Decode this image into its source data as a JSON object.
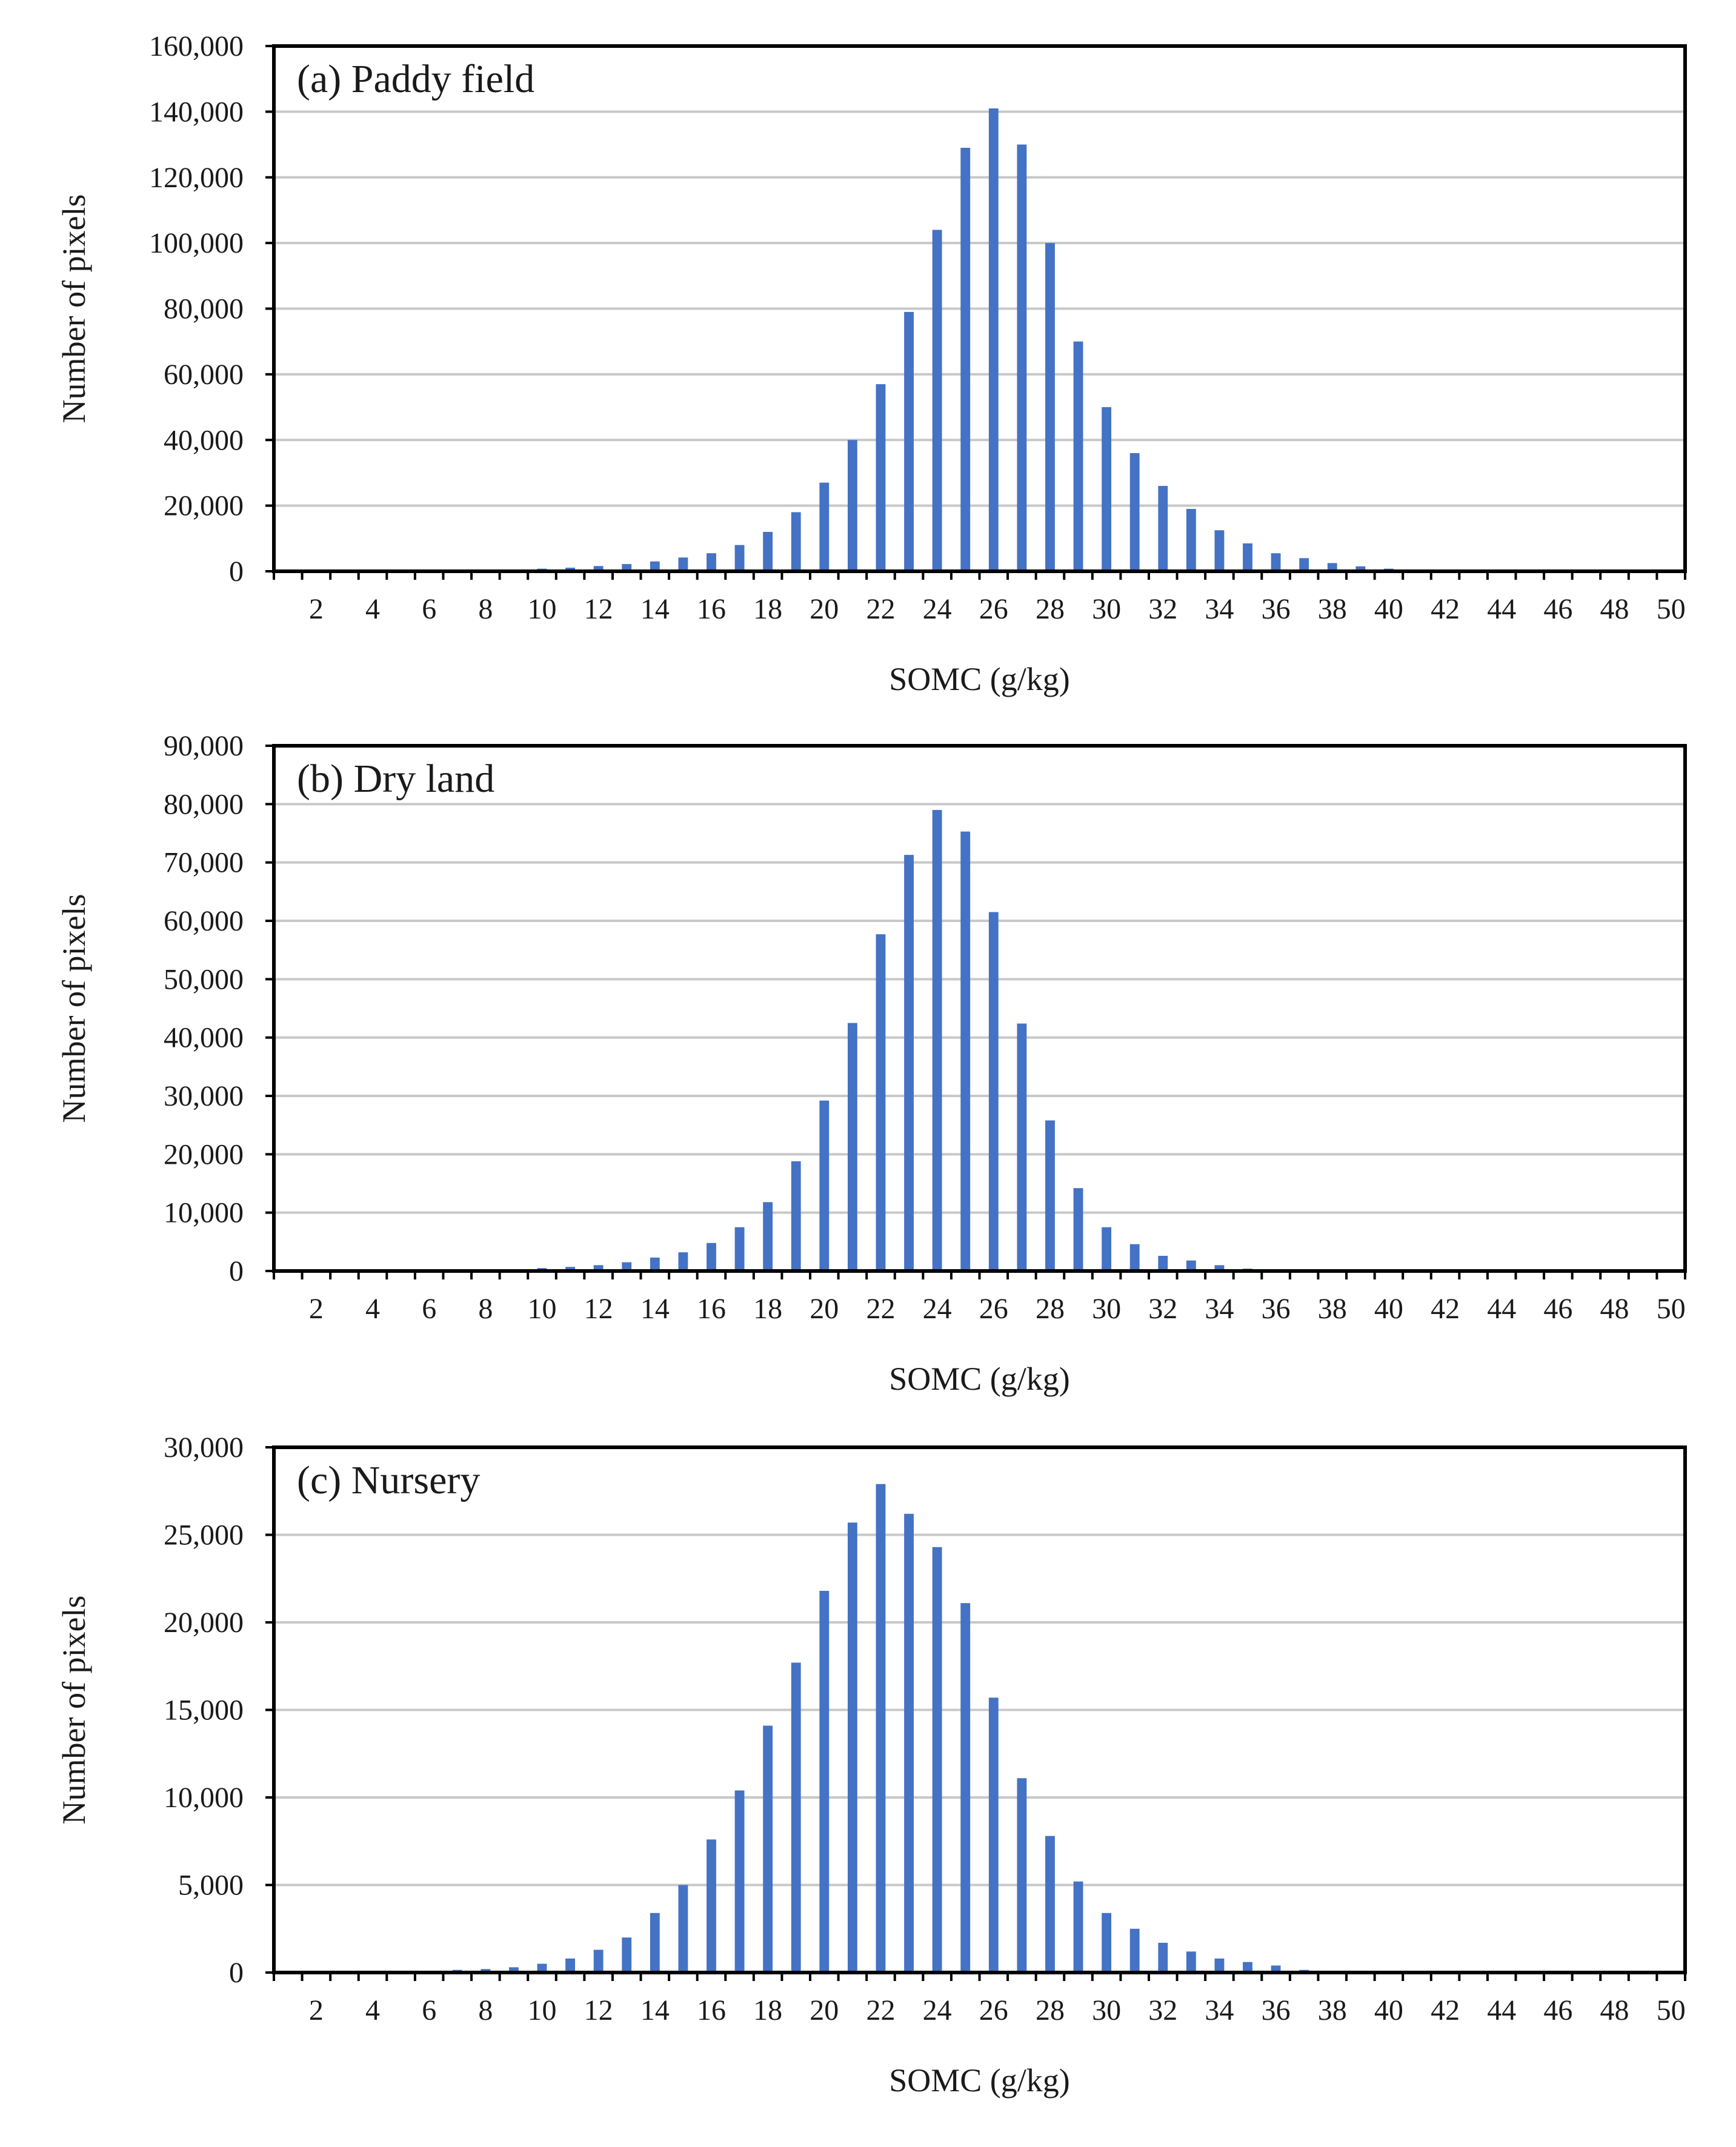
{
  "colors": {
    "bar": "#4472C4",
    "grid": "#C8C8C8",
    "frame": "#000000",
    "text": "#1a1a1a"
  },
  "chart_data": [
    {
      "type": "bar",
      "title": "(a) Paddy field",
      "xlabel": "SOMC (g/kg)",
      "ylabel": "Number of pixels",
      "xlim": [
        1,
        50
      ],
      "ylim": [
        0,
        160000
      ],
      "grid": true,
      "x_tick_labels": [
        "2",
        "4",
        "6",
        "8",
        "10",
        "12",
        "14",
        "16",
        "18",
        "20",
        "22",
        "24",
        "26",
        "28",
        "30",
        "32",
        "34",
        "36",
        "38",
        "40",
        "42",
        "44",
        "46",
        "48",
        "50"
      ],
      "y_tick_labels": [
        "0",
        "20,000",
        "40,000",
        "60,000",
        "80,000",
        "100,000",
        "120,000",
        "140,000",
        "160,000"
      ],
      "x": [
        1,
        2,
        3,
        4,
        5,
        6,
        7,
        8,
        9,
        10,
        11,
        12,
        13,
        14,
        15,
        16,
        17,
        18,
        19,
        20,
        21,
        22,
        23,
        24,
        25,
        26,
        27,
        28,
        29,
        30,
        31,
        32,
        33,
        34,
        35,
        36,
        37,
        38,
        39,
        40,
        41,
        42,
        43,
        44,
        45,
        46,
        47,
        48,
        49,
        50
      ],
      "values": [
        0,
        0,
        0,
        0,
        0,
        0,
        100,
        150,
        250,
        800,
        1100,
        1600,
        2200,
        3000,
        4200,
        5500,
        8000,
        12000,
        18000,
        27000,
        40000,
        57000,
        79000,
        104000,
        129000,
        141000,
        130000,
        100000,
        70000,
        50000,
        36000,
        26000,
        19000,
        12500,
        8500,
        5500,
        4000,
        2500,
        1500,
        800,
        300,
        150,
        50,
        0,
        0,
        0,
        0,
        0,
        0,
        0
      ]
    },
    {
      "type": "bar",
      "title": "(b) Dry land",
      "xlabel": "SOMC (g/kg)",
      "ylabel": "Number of pixels",
      "xlim": [
        1,
        50
      ],
      "ylim": [
        0,
        90000
      ],
      "grid": true,
      "x_tick_labels": [
        "2",
        "4",
        "6",
        "8",
        "10",
        "12",
        "14",
        "16",
        "18",
        "20",
        "22",
        "24",
        "26",
        "28",
        "30",
        "32",
        "34",
        "36",
        "38",
        "40",
        "42",
        "44",
        "46",
        "48",
        "50"
      ],
      "y_tick_labels": [
        "0",
        "10,000",
        "20,000",
        "30,000",
        "40,000",
        "50,000",
        "60,000",
        "70,000",
        "80,000",
        "90,000"
      ],
      "x": [
        1,
        2,
        3,
        4,
        5,
        6,
        7,
        8,
        9,
        10,
        11,
        12,
        13,
        14,
        15,
        16,
        17,
        18,
        19,
        20,
        21,
        22,
        23,
        24,
        25,
        26,
        27,
        28,
        29,
        30,
        31,
        32,
        33,
        34,
        35,
        36,
        37,
        38,
        39,
        40,
        41,
        42,
        43,
        44,
        45,
        46,
        47,
        48,
        49,
        50
      ],
      "values": [
        0,
        0,
        0,
        0,
        0,
        0,
        0,
        100,
        200,
        500,
        700,
        1000,
        1500,
        2300,
        3200,
        4800,
        7500,
        11800,
        18800,
        29200,
        42500,
        57700,
        71300,
        79000,
        75300,
        61500,
        42400,
        25800,
        14200,
        7500,
        4600,
        2600,
        1800,
        1000,
        400,
        200,
        50,
        0,
        0,
        0,
        0,
        0,
        0,
        0,
        0,
        0,
        0,
        0,
        0,
        0
      ]
    },
    {
      "type": "bar",
      "title": "(c) Nursery",
      "xlabel": "SOMC (g/kg)",
      "ylabel": "Number of pixels",
      "xlim": [
        1,
        50
      ],
      "ylim": [
        0,
        30000
      ],
      "grid": true,
      "x_tick_labels": [
        "2",
        "4",
        "6",
        "8",
        "10",
        "12",
        "14",
        "16",
        "18",
        "20",
        "22",
        "24",
        "26",
        "28",
        "30",
        "32",
        "34",
        "36",
        "38",
        "40",
        "42",
        "44",
        "46",
        "48",
        "50"
      ],
      "y_tick_labels": [
        "0",
        "5,000",
        "10,000",
        "15,000",
        "20,000",
        "25,000",
        "30,000"
      ],
      "x": [
        1,
        2,
        3,
        4,
        5,
        6,
        7,
        8,
        9,
        10,
        11,
        12,
        13,
        14,
        15,
        16,
        17,
        18,
        19,
        20,
        21,
        22,
        23,
        24,
        25,
        26,
        27,
        28,
        29,
        30,
        31,
        32,
        33,
        34,
        35,
        36,
        37,
        38,
        39,
        40,
        41,
        42,
        43,
        44,
        45,
        46,
        47,
        48,
        49,
        50
      ],
      "values": [
        0,
        0,
        0,
        0,
        0,
        50,
        150,
        200,
        300,
        500,
        800,
        1300,
        2000,
        3400,
        5000,
        7600,
        10400,
        14100,
        17700,
        21800,
        25700,
        27900,
        26200,
        24300,
        21100,
        15700,
        11100,
        7800,
        5200,
        3400,
        2500,
        1700,
        1200,
        800,
        600,
        400,
        150,
        50,
        0,
        0,
        0,
        0,
        0,
        0,
        0,
        0,
        0,
        0,
        0,
        0
      ]
    }
  ]
}
